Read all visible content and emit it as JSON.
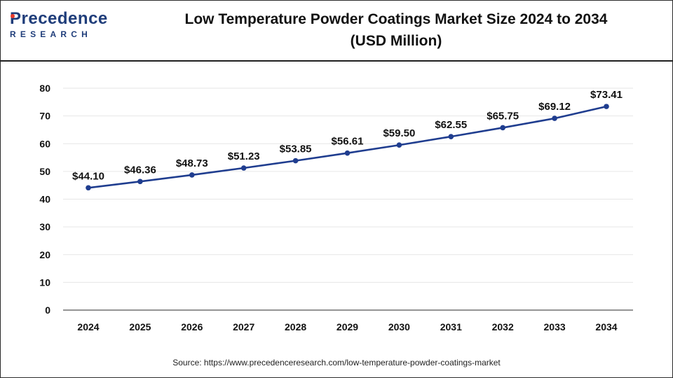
{
  "header": {
    "logo_top": "recedence",
    "logo_p": "P",
    "logo_bottom": "RESEARCH",
    "title_line1": "Low Temperature Powder Coatings Market Size 2024 to 2034",
    "title_line2": "(USD Million)"
  },
  "colors": {
    "line": "#1f3d8f",
    "brand": "#1f3d7a",
    "accent": "#e8392b",
    "grid": "#e6e6e6",
    "axis": "#555555"
  },
  "chart_data": {
    "type": "line",
    "title": "Low Temperature Powder Coatings Market Size 2024 to 2034 (USD Million)",
    "xlabel": "",
    "ylabel": "",
    "categories": [
      "2024",
      "2025",
      "2026",
      "2027",
      "2028",
      "2029",
      "2030",
      "2031",
      "2032",
      "2033",
      "2034"
    ],
    "values": [
      44.1,
      46.36,
      48.73,
      51.23,
      53.85,
      56.61,
      59.5,
      62.55,
      65.75,
      69.12,
      73.41
    ],
    "data_labels": [
      "$44.10",
      "$46.36",
      "$48.73",
      "$51.23",
      "$53.85",
      "$56.61",
      "$59.50",
      "$62.55",
      "$65.75",
      "$69.12",
      "$73.41"
    ],
    "ylim": [
      0,
      80
    ],
    "yticks": [
      0,
      10,
      20,
      30,
      40,
      50,
      60,
      70,
      80
    ],
    "grid": true,
    "legend": "none"
  },
  "footer": {
    "source": "Source: https://www.precedenceresearch.com/low-temperature-powder-coatings-market"
  }
}
